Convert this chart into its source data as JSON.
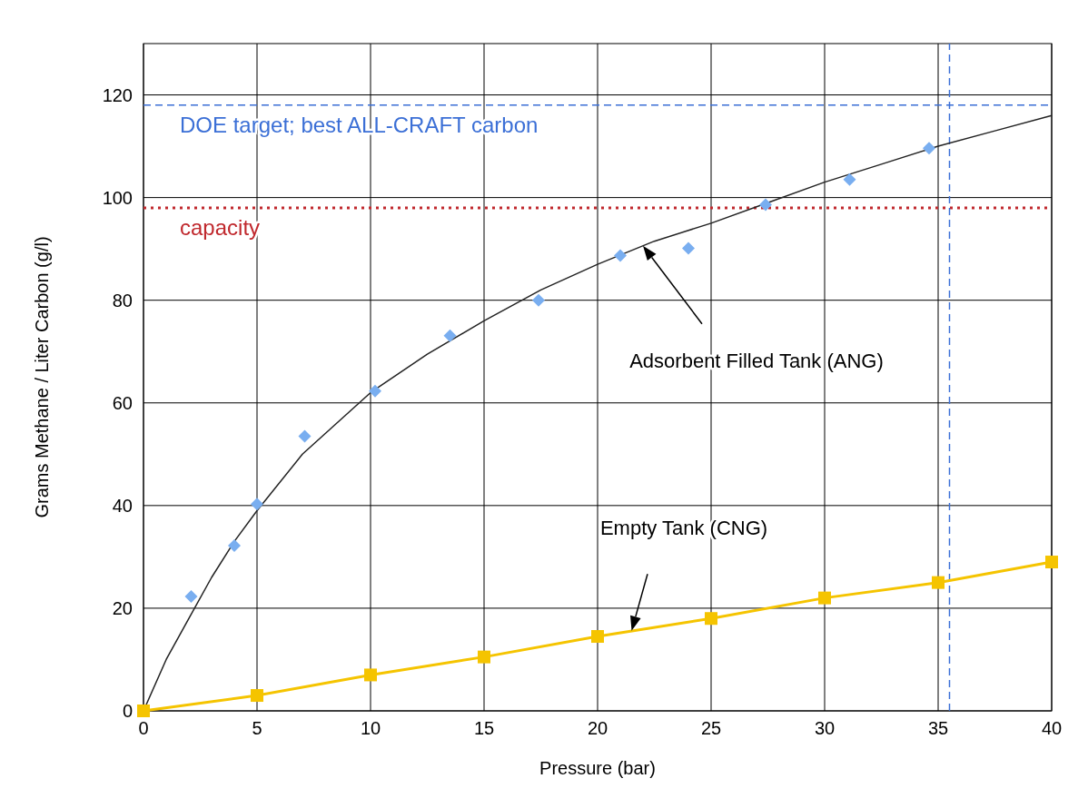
{
  "chart_data": {
    "type": "line",
    "xlabel": "Pressure (bar)",
    "ylabel": "Grams Methane / Liter Carbon (g/l)",
    "xlim": [
      0,
      40
    ],
    "ylim": [
      0,
      130
    ],
    "xticks": [
      0,
      5,
      10,
      15,
      20,
      25,
      30,
      35,
      40
    ],
    "yticks": [
      0,
      20,
      40,
      60,
      80,
      100,
      120
    ],
    "grid": true,
    "series": [
      {
        "type": "line",
        "color": "#222222",
        "marker": "none",
        "x": [
          0,
          1,
          2,
          3,
          4,
          5,
          7,
          10,
          12.5,
          15,
          17.5,
          20,
          22.5,
          25,
          27.5,
          30,
          32.5,
          35,
          37.5,
          40
        ],
        "values": [
          0,
          10,
          18,
          26,
          33,
          39,
          50,
          62,
          69.5,
          76,
          82,
          87,
          91.5,
          95,
          99,
          103,
          106.5,
          110,
          113,
          116
        ]
      },
      {
        "type": "scatter",
        "color": "#79aef0",
        "marker": "diamond",
        "x": [
          2.1,
          4,
          5,
          7.1,
          10.2,
          13.5,
          17.4,
          21,
          24,
          27.4,
          31.1,
          34.6
        ],
        "values": [
          22.3,
          32.2,
          40.3,
          53.5,
          62.3,
          73.1,
          80,
          88.7,
          90.1,
          98.6,
          103.5,
          109.6
        ]
      },
      {
        "type": "line",
        "color": "#f5c400",
        "marker": "square",
        "x": [
          0,
          5,
          10,
          15,
          20,
          25,
          30,
          35,
          40
        ],
        "values": [
          0,
          3,
          7,
          10.5,
          14.5,
          18,
          22,
          25,
          29
        ]
      }
    ],
    "ref_lines": [
      {
        "axis": "y",
        "value": 118,
        "label": "DOE target; best ALL-CRAFT carbon",
        "color": "#3b6fd6",
        "line_style": "dashed"
      },
      {
        "axis": "y",
        "value": 98,
        "label": "capacity",
        "color": "#c0282d",
        "line_style": "dotted"
      },
      {
        "axis": "x",
        "value": 35.5,
        "label": null,
        "color": "#3b6fd6",
        "line_style": "dashed"
      }
    ],
    "annotations": [
      "Adsorbent Filled Tank (ANG)",
      "Empty Tank (CNG)"
    ]
  }
}
